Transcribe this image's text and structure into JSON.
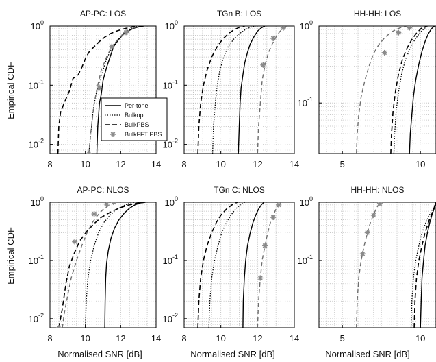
{
  "figure": {
    "ylabel": "Empirical CDF",
    "xlabel": "Normalised SNR [dB]"
  },
  "legend": {
    "entries": [
      {
        "label": "Per-tone",
        "series_ref": "Per-tone"
      },
      {
        "label": "Bulkopt",
        "series_ref": "Bulkopt"
      },
      {
        "label": "BulkPBS",
        "series_ref": "BulkPBS"
      },
      {
        "label": "BulkFFT PBS",
        "series_ref": "BulkFFT PBS"
      }
    ]
  },
  "styles": {
    "Per-tone": {
      "color": "#000000",
      "dash": "none",
      "width": 1.4,
      "marker": false
    },
    "Bulkopt": {
      "color": "#000000",
      "dash": "1.5,2",
      "width": 1.3,
      "marker": false
    },
    "BulkPBS": {
      "color": "#000000",
      "dash": "7,4",
      "width": 1.6,
      "marker": false
    },
    "BulkFFT PBS": {
      "color": "#6e6e6e",
      "dash": "6,4",
      "width": 1.4,
      "marker": true,
      "marker_color": "#8a8a8a"
    }
  },
  "chart_data": [
    {
      "type": "line",
      "title": "AP-PC: LOS",
      "xlim": [
        8,
        14
      ],
      "ylim": [
        0.007,
        1
      ],
      "yscale": "log",
      "xticks": [
        8,
        10,
        12,
        14
      ],
      "yticks": [
        {
          "v": 0.01,
          "base": "10",
          "exp": "-2"
        },
        {
          "v": 0.1,
          "base": "10",
          "exp": "-1"
        },
        {
          "v": 1,
          "base": "10",
          "exp": "0"
        }
      ],
      "series": [
        {
          "name": "Per-tone",
          "x": [
            10.65,
            10.7,
            10.8,
            10.9,
            11.0,
            11.2,
            11.4,
            11.6,
            11.9,
            12.2,
            12.5,
            12.8,
            13.1,
            13.3
          ],
          "y": [
            0.007,
            0.02,
            0.05,
            0.07,
            0.12,
            0.2,
            0.3,
            0.45,
            0.6,
            0.75,
            0.85,
            0.93,
            0.98,
            1.0
          ]
        },
        {
          "name": "Bulkopt",
          "x": [
            10.2,
            10.35,
            10.45,
            10.6,
            10.8,
            11.0,
            11.2,
            11.5,
            11.8,
            12.1,
            12.4,
            12.7,
            12.95
          ],
          "y": [
            0.007,
            0.02,
            0.04,
            0.07,
            0.11,
            0.18,
            0.28,
            0.42,
            0.58,
            0.72,
            0.85,
            0.94,
            1.0
          ]
        },
        {
          "name": "BulkPBS",
          "x": [
            8.45,
            8.5,
            8.6,
            8.8,
            9.1,
            9.3,
            9.6,
            9.8,
            10.0,
            10.2,
            10.5,
            10.8,
            11.1,
            11.4,
            11.8,
            12.2,
            12.6,
            13.0,
            13.3
          ],
          "y": [
            0.007,
            0.02,
            0.035,
            0.05,
            0.08,
            0.13,
            0.15,
            0.2,
            0.28,
            0.36,
            0.45,
            0.55,
            0.65,
            0.74,
            0.83,
            0.9,
            0.96,
            0.99,
            1.0
          ]
        },
        {
          "name": "BulkFFT PBS",
          "x": [
            10.2,
            10.3,
            10.5,
            10.7,
            10.9,
            11.2,
            11.5,
            11.9,
            12.3,
            12.7,
            13.0
          ],
          "y": [
            0.007,
            0.015,
            0.05,
            0.1,
            0.18,
            0.3,
            0.45,
            0.62,
            0.78,
            0.92,
            1.0
          ]
        }
      ],
      "markers": [
        {
          "x": 10.2,
          "y": 0.007
        },
        {
          "x": 10.8,
          "y": 0.09
        },
        {
          "x": 11.5,
          "y": 0.45
        },
        {
          "x": 12.3,
          "y": 0.78
        }
      ]
    },
    {
      "type": "line",
      "title": "TGn B: LOS",
      "xlim": [
        8,
        14
      ],
      "ylim": [
        0.007,
        1
      ],
      "yscale": "log",
      "xticks": [
        8,
        10,
        12,
        14
      ],
      "yticks": [
        {
          "v": 0.01,
          "base": "10",
          "exp": "-2"
        },
        {
          "v": 0.1,
          "base": "10",
          "exp": "-1"
        },
        {
          "v": 1,
          "base": "10",
          "exp": "0"
        }
      ],
      "series": [
        {
          "name": "Per-tone",
          "x": [
            10.95,
            11.0,
            11.05,
            11.1,
            11.2,
            11.3,
            11.45,
            11.6,
            11.8,
            12.0,
            12.2,
            12.4
          ],
          "y": [
            0.007,
            0.02,
            0.05,
            0.09,
            0.15,
            0.24,
            0.36,
            0.5,
            0.66,
            0.82,
            0.93,
            1.0
          ]
        },
        {
          "name": "Bulkopt",
          "x": [
            9.55,
            9.6,
            9.7,
            9.8,
            9.95,
            10.15,
            10.4,
            10.7,
            11.0,
            11.3,
            11.6,
            11.9
          ],
          "y": [
            0.007,
            0.02,
            0.05,
            0.1,
            0.18,
            0.3,
            0.45,
            0.6,
            0.74,
            0.86,
            0.95,
            1.0
          ]
        },
        {
          "name": "BulkPBS",
          "x": [
            8.75,
            8.8,
            8.9,
            9.05,
            9.25,
            9.5,
            9.8,
            10.1,
            10.4,
            10.7,
            11.0,
            11.3
          ],
          "y": [
            0.007,
            0.02,
            0.05,
            0.1,
            0.18,
            0.3,
            0.45,
            0.6,
            0.74,
            0.86,
            0.95,
            1.0
          ]
        },
        {
          "name": "BulkFFT PBS",
          "x": [
            12.0,
            12.05,
            12.15,
            12.25,
            12.4,
            12.6,
            12.8,
            13.0,
            13.2,
            13.4,
            13.6
          ],
          "y": [
            0.007,
            0.02,
            0.05,
            0.12,
            0.22,
            0.36,
            0.5,
            0.65,
            0.8,
            0.93,
            1.0
          ]
        }
      ],
      "markers": [
        {
          "x": 12.3,
          "y": 0.22
        },
        {
          "x": 12.85,
          "y": 0.62
        },
        {
          "x": 13.4,
          "y": 0.93
        }
      ]
    },
    {
      "type": "line",
      "title": "HH-HH: LOS",
      "xlim": [
        3.5,
        11
      ],
      "ylim": [
        0.022,
        1
      ],
      "yscale": "log",
      "xticks": [
        5,
        10
      ],
      "yticks": [
        {
          "v": 0.1,
          "base": "10",
          "exp": "-1"
        },
        {
          "v": 1,
          "base": "10",
          "exp": "0"
        }
      ],
      "series": [
        {
          "name": "Per-tone",
          "x": [
            9.3,
            9.35,
            9.45,
            9.55,
            9.7,
            9.9,
            10.1,
            10.3,
            10.5,
            10.7,
            10.9
          ],
          "y": [
            0.022,
            0.04,
            0.07,
            0.12,
            0.2,
            0.32,
            0.47,
            0.63,
            0.79,
            0.92,
            1.0
          ]
        },
        {
          "name": "Bulkopt",
          "x": [
            8.3,
            8.35,
            8.45,
            8.6,
            8.8,
            9.05,
            9.35,
            9.65,
            9.95,
            10.25,
            10.5
          ],
          "y": [
            0.022,
            0.04,
            0.08,
            0.14,
            0.24,
            0.37,
            0.52,
            0.67,
            0.81,
            0.93,
            1.0
          ]
        },
        {
          "name": "BulkPBS",
          "x": [
            8.1,
            8.15,
            8.25,
            8.4,
            8.6,
            8.85,
            9.15,
            9.45,
            9.75,
            10.05,
            10.35
          ],
          "y": [
            0.022,
            0.04,
            0.08,
            0.14,
            0.24,
            0.37,
            0.52,
            0.67,
            0.81,
            0.93,
            1.0
          ]
        },
        {
          "name": "BulkFFT PBS",
          "x": [
            5.9,
            5.95,
            6.05,
            6.2,
            6.45,
            6.7,
            7.0,
            7.35,
            7.75,
            8.2,
            8.7,
            9.3
          ],
          "y": [
            0.022,
            0.04,
            0.07,
            0.12,
            0.2,
            0.3,
            0.44,
            0.58,
            0.72,
            0.85,
            0.95,
            1.0
          ]
        }
      ],
      "markers": [
        {
          "x": 7.7,
          "y": 0.45
        },
        {
          "x": 8.6,
          "y": 0.82
        },
        {
          "x": 9.3,
          "y": 0.95
        }
      ]
    },
    {
      "type": "line",
      "title": "AP-PC: NLOS",
      "xlim": [
        8,
        14
      ],
      "ylim": [
        0.007,
        1
      ],
      "yscale": "log",
      "xticks": [
        8,
        10,
        12,
        14
      ],
      "yticks": [
        {
          "v": 0.01,
          "base": "10",
          "exp": "-2"
        },
        {
          "v": 0.1,
          "base": "10",
          "exp": "-1"
        },
        {
          "v": 1,
          "base": "10",
          "exp": "0"
        }
      ],
      "series": [
        {
          "name": "Per-tone",
          "x": [
            11.1,
            11.12,
            11.15,
            11.2,
            11.3,
            11.45,
            11.65,
            11.9,
            12.2,
            12.5,
            12.8,
            13.1,
            13.35
          ],
          "y": [
            0.007,
            0.02,
            0.05,
            0.09,
            0.15,
            0.24,
            0.36,
            0.5,
            0.65,
            0.79,
            0.9,
            0.97,
            1.0
          ]
        },
        {
          "name": "Bulkopt",
          "x": [
            10.0,
            10.05,
            10.15,
            10.3,
            10.5,
            10.75,
            11.05,
            11.4,
            11.75,
            12.1,
            12.45,
            12.8
          ],
          "y": [
            0.007,
            0.02,
            0.05,
            0.1,
            0.18,
            0.3,
            0.45,
            0.6,
            0.74,
            0.86,
            0.95,
            1.0
          ]
        },
        {
          "name": "BulkPBS",
          "x": [
            8.5,
            8.7,
            8.9,
            9.1,
            9.4,
            9.7,
            10.1,
            10.5,
            10.9,
            11.4,
            11.9,
            12.4,
            12.9,
            13.4
          ],
          "y": [
            0.007,
            0.015,
            0.04,
            0.08,
            0.14,
            0.22,
            0.32,
            0.43,
            0.55,
            0.67,
            0.79,
            0.89,
            0.96,
            1.0
          ]
        },
        {
          "name": "BulkFFT PBS",
          "x": [
            8.7,
            8.8,
            9.0,
            9.2,
            9.5,
            9.8,
            10.1,
            10.4,
            10.7,
            11.0,
            11.3,
            11.6,
            11.8
          ],
          "y": [
            0.007,
            0.012,
            0.025,
            0.05,
            0.1,
            0.18,
            0.3,
            0.45,
            0.6,
            0.75,
            0.87,
            0.96,
            1.0
          ]
        }
      ],
      "markers": [
        {
          "x": 8.5,
          "y": 0.007
        },
        {
          "x": 9.4,
          "y": 0.21
        },
        {
          "x": 10.5,
          "y": 0.63
        },
        {
          "x": 11.2,
          "y": 0.93
        },
        {
          "x": 11.6,
          "y": 1.0
        }
      ]
    },
    {
      "type": "line",
      "title": "TGn C: NLOS",
      "xlim": [
        8,
        14
      ],
      "ylim": [
        0.007,
        1
      ],
      "yscale": "log",
      "xticks": [
        8,
        10,
        12,
        14
      ],
      "yticks": [
        {
          "v": 0.01,
          "base": "10",
          "exp": "-2"
        },
        {
          "v": 0.1,
          "base": "10",
          "exp": "-1"
        },
        {
          "v": 1,
          "base": "10",
          "exp": "0"
        }
      ],
      "series": [
        {
          "name": "Per-tone",
          "x": [
            11.2,
            11.22,
            11.28,
            11.35,
            11.45,
            11.6,
            11.75,
            11.9,
            12.05,
            12.2,
            12.35
          ],
          "y": [
            0.007,
            0.02,
            0.05,
            0.1,
            0.18,
            0.3,
            0.45,
            0.6,
            0.76,
            0.9,
            1.0
          ]
        },
        {
          "name": "Bulkopt",
          "x": [
            9.35,
            9.4,
            9.5,
            9.65,
            9.85,
            10.05,
            10.3,
            10.55,
            10.8,
            11.05,
            11.3
          ],
          "y": [
            0.007,
            0.02,
            0.05,
            0.1,
            0.18,
            0.3,
            0.45,
            0.6,
            0.76,
            0.9,
            1.0
          ]
        },
        {
          "name": "BulkPBS",
          "x": [
            8.75,
            8.8,
            8.9,
            9.05,
            9.25,
            9.5,
            9.75,
            10.0,
            10.3,
            10.6,
            10.9
          ],
          "y": [
            0.007,
            0.02,
            0.05,
            0.1,
            0.18,
            0.3,
            0.45,
            0.6,
            0.76,
            0.9,
            1.0
          ]
        },
        {
          "name": "BulkFFT PBS",
          "x": [
            12.0,
            12.05,
            12.15,
            12.25,
            12.4,
            12.55,
            12.7,
            12.85,
            13.0,
            13.15,
            13.3
          ],
          "y": [
            0.007,
            0.02,
            0.05,
            0.1,
            0.18,
            0.3,
            0.45,
            0.6,
            0.76,
            0.9,
            1.0
          ]
        }
      ],
      "markers": [
        {
          "x": 12.15,
          "y": 0.05
        },
        {
          "x": 12.4,
          "y": 0.18
        },
        {
          "x": 12.85,
          "y": 0.55
        },
        {
          "x": 13.15,
          "y": 0.9
        }
      ]
    },
    {
      "type": "line",
      "title": "HH-HH: NLOS",
      "xlim": [
        3.5,
        11
      ],
      "ylim": [
        0.007,
        1
      ],
      "yscale": "log",
      "xticks": [
        5,
        10
      ],
      "yticks": [
        {
          "v": 0.1,
          "base": "10",
          "exp": "-1"
        },
        {
          "v": 1,
          "base": "10",
          "exp": "0"
        }
      ],
      "series": [
        {
          "name": "Per-tone",
          "x": [
            10.0,
            10.05,
            10.1,
            10.2,
            10.3,
            10.45,
            10.6,
            10.75,
            10.9,
            11.0
          ],
          "y": [
            0.007,
            0.02,
            0.05,
            0.1,
            0.18,
            0.3,
            0.45,
            0.62,
            0.8,
            1.0
          ]
        },
        {
          "name": "Bulkopt",
          "x": [
            9.4,
            9.45,
            9.55,
            9.7,
            9.9,
            10.1,
            10.35,
            10.6,
            10.85,
            11.0
          ],
          "y": [
            0.007,
            0.02,
            0.05,
            0.1,
            0.18,
            0.3,
            0.45,
            0.62,
            0.82,
            1.0
          ]
        },
        {
          "name": "BulkPBS",
          "x": [
            9.6,
            9.65,
            9.75,
            9.9,
            10.1,
            10.3,
            10.55,
            10.8,
            11.0
          ],
          "y": [
            0.007,
            0.02,
            0.05,
            0.1,
            0.18,
            0.3,
            0.48,
            0.7,
            1.0
          ]
        },
        {
          "name": "BulkFFT PBS",
          "x": [
            5.9,
            5.95,
            6.05,
            6.2,
            6.4,
            6.6,
            6.8,
            7.0,
            7.2,
            7.4
          ],
          "y": [
            0.007,
            0.02,
            0.05,
            0.1,
            0.18,
            0.3,
            0.45,
            0.62,
            0.8,
            1.0
          ]
        }
      ],
      "markers": [
        {
          "x": 6.3,
          "y": 0.13
        },
        {
          "x": 6.6,
          "y": 0.3
        },
        {
          "x": 7.0,
          "y": 0.6
        },
        {
          "x": 7.4,
          "y": 0.95
        }
      ]
    }
  ]
}
